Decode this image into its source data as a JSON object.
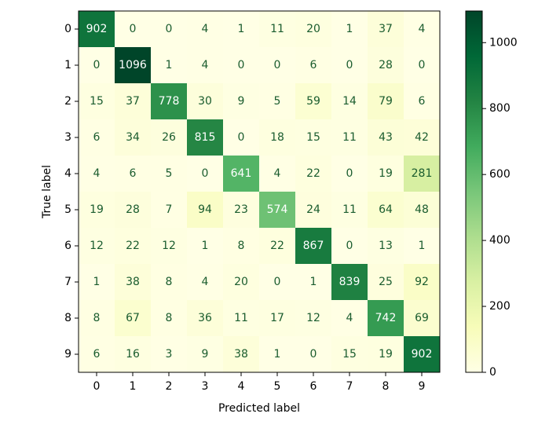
{
  "chart_data": {
    "type": "heatmap",
    "title": "",
    "xlabel": "Predicted label",
    "ylabel": "True label",
    "x_categories": [
      "0",
      "1",
      "2",
      "3",
      "4",
      "5",
      "6",
      "7",
      "8",
      "9"
    ],
    "y_categories": [
      "0",
      "1",
      "2",
      "3",
      "4",
      "5",
      "6",
      "7",
      "8",
      "9"
    ],
    "values": [
      [
        902,
        0,
        0,
        4,
        1,
        11,
        20,
        1,
        37,
        4
      ],
      [
        0,
        1096,
        1,
        4,
        0,
        0,
        6,
        0,
        28,
        0
      ],
      [
        15,
        37,
        778,
        30,
        9,
        5,
        59,
        14,
        79,
        6
      ],
      [
        6,
        34,
        26,
        815,
        0,
        18,
        15,
        11,
        43,
        42
      ],
      [
        4,
        6,
        5,
        0,
        641,
        4,
        22,
        0,
        19,
        281
      ],
      [
        19,
        28,
        7,
        94,
        23,
        574,
        24,
        11,
        64,
        48
      ],
      [
        12,
        22,
        12,
        1,
        8,
        22,
        867,
        0,
        13,
        1
      ],
      [
        1,
        38,
        8,
        4,
        20,
        0,
        1,
        839,
        25,
        92
      ],
      [
        8,
        67,
        8,
        36,
        11,
        17,
        12,
        4,
        742,
        69
      ],
      [
        6,
        16,
        3,
        9,
        38,
        1,
        0,
        15,
        19,
        902
      ]
    ],
    "colormap": "YlGn",
    "vmin": 0,
    "vmax": 1096,
    "colorbar": {
      "ticks": [
        0,
        200,
        400,
        600,
        800,
        1000
      ]
    },
    "grid": false,
    "legend": "none"
  },
  "colors": {
    "text_on_light": "#1a5c2e",
    "text_on_dark": "#ffffff"
  }
}
